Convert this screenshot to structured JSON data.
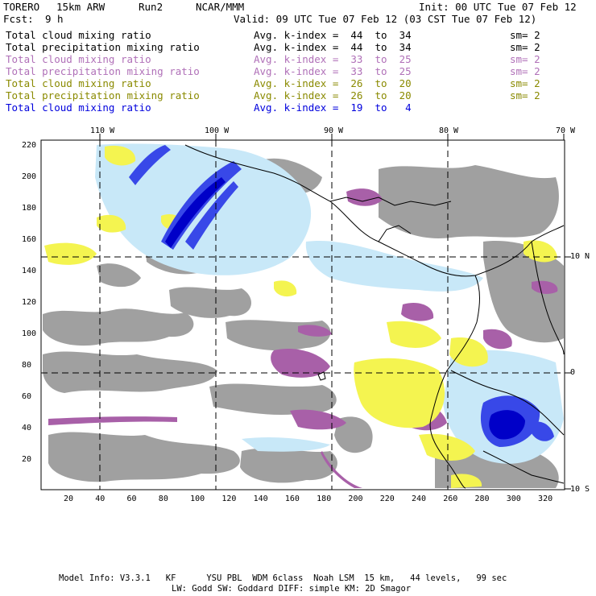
{
  "header": {
    "model": "TORERO",
    "resolution": "15km ARW",
    "run": "Run2",
    "org": "NCAR/MMM",
    "init": "Init: 00 UTC Tue 07 Feb 12",
    "fcst_label": "Fcst:",
    "fcst_value": "9 h",
    "valid": "Valid: 09 UTC Tue 07 Feb 12 (03 CST Tue 07 Feb 12)"
  },
  "legend": [
    {
      "name": "Total cloud mixing ratio",
      "avg": "Avg. k-index =  44  to  34",
      "sm": "sm= 2",
      "color": "#000000"
    },
    {
      "name": "Total precipitation mixing ratio",
      "avg": "Avg. k-index =  44  to  34",
      "sm": "sm= 2",
      "color": "#000000"
    },
    {
      "name": "Total cloud mixing ratio",
      "avg": "Avg. k-index =  33  to  25",
      "sm": "sm= 2",
      "color": "#b070b8"
    },
    {
      "name": "Total precipitation mixing ratio",
      "avg": "Avg. k-index =  33  to  25",
      "sm": "sm= 2",
      "color": "#b070b8"
    },
    {
      "name": "Total cloud mixing ratio",
      "avg": "Avg. k-index =  26  to  20",
      "sm": "sm= 2",
      "color": "#8a8a00"
    },
    {
      "name": "Total precipitation mixing ratio",
      "avg": "Avg. k-index =  26  to  20",
      "sm": "sm= 2",
      "color": "#8a8a00"
    },
    {
      "name": "Total cloud mixing ratio",
      "avg": "Avg. k-index =  19  to   4",
      "sm": "",
      "color": "#0000dd"
    }
  ],
  "map": {
    "lon_labels": [
      "110 W",
      "100 W",
      "90 W",
      "80 W",
      "70 W"
    ],
    "lat_labels": [
      "10 N",
      "0",
      "10 S"
    ],
    "y_ticks": [
      "220",
      "200",
      "180",
      "160",
      "140",
      "120",
      "100",
      "80",
      "60",
      "40",
      "20"
    ],
    "x_ticks": [
      "20",
      "40",
      "60",
      "80",
      "100",
      "120",
      "140",
      "160",
      "180",
      "200",
      "220",
      "240",
      "260",
      "280",
      "300",
      "320"
    ],
    "colors": {
      "gray_cloud": "#9e9e9e",
      "purple": "#a860a8",
      "yellow": "#f4f450",
      "light_blue": "#c4e8f8",
      "blue": "#3040e0",
      "dark_blue": "#0000d0"
    }
  },
  "footer": {
    "line1": "Model Info: V3.3.1   KF      YSU PBL  WDM 6class  Noah LSM  15 km,   44 levels,   99 sec",
    "line2": "LW: Godd SW: Goddard DIFF: simple KM: 2D Smagor"
  }
}
